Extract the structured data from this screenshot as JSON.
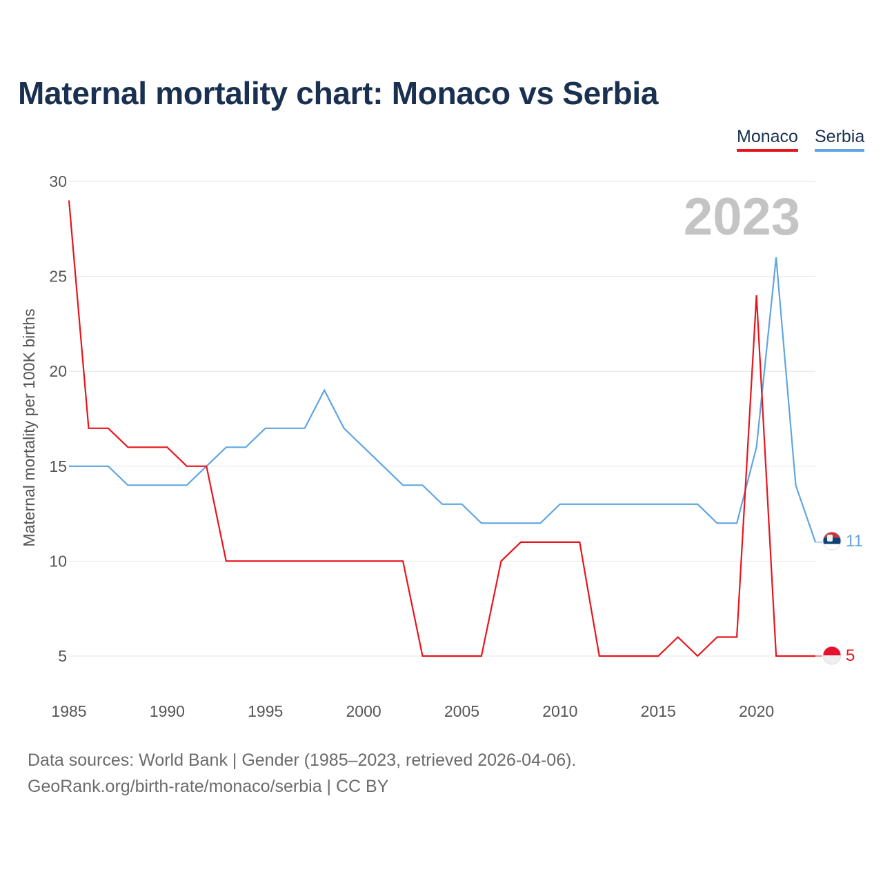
{
  "title": "Maternal mortality chart: Monaco vs Serbia",
  "legend": {
    "monaco": "Monaco",
    "serbia": "Serbia"
  },
  "year_label": "2023",
  "footer": {
    "source": "Data sources: World Bank | Gender (1985–2023, retrieved 2026-04-06).",
    "credit": "GeoRank.org/birth-rate/monaco/serbia | CC BY"
  },
  "colors": {
    "monaco": "#e8141c",
    "serbia": "#5fa5e3",
    "grid": "#e6e6e6"
  },
  "chart_data": {
    "type": "line",
    "title": "Maternal mortality chart: Monaco vs Serbia",
    "xlabel": "",
    "ylabel": "Maternal mortality per 100K births",
    "xlim": [
      1985,
      2023
    ],
    "ylim": [
      5,
      30
    ],
    "x_ticks": [
      1985,
      1990,
      1995,
      2000,
      2005,
      2010,
      2015,
      2020
    ],
    "y_ticks": [
      5,
      10,
      15,
      20,
      25,
      30
    ],
    "x": [
      1985,
      1986,
      1987,
      1988,
      1989,
      1990,
      1991,
      1992,
      1993,
      1994,
      1995,
      1996,
      1997,
      1998,
      1999,
      2000,
      2001,
      2002,
      2003,
      2004,
      2005,
      2006,
      2007,
      2008,
      2009,
      2010,
      2011,
      2012,
      2013,
      2014,
      2015,
      2016,
      2017,
      2018,
      2019,
      2020,
      2021,
      2022,
      2023
    ],
    "series": [
      {
        "name": "Monaco",
        "end_value": "5",
        "values": [
          29,
          17,
          17,
          16,
          16,
          16,
          15,
          15,
          10,
          10,
          10,
          10,
          10,
          10,
          10,
          10,
          10,
          10,
          5,
          5,
          5,
          5,
          10,
          11,
          11,
          11,
          11,
          5,
          5,
          5,
          5,
          6,
          5,
          6,
          6,
          24,
          5,
          5,
          5
        ]
      },
      {
        "name": "Serbia",
        "end_value": "11",
        "values": [
          15,
          15,
          15,
          14,
          14,
          14,
          14,
          15,
          16,
          16,
          17,
          17,
          17,
          19,
          17,
          16,
          15,
          14,
          14,
          13,
          13,
          12,
          12,
          12,
          12,
          13,
          13,
          13,
          13,
          13,
          13,
          13,
          13,
          12,
          12,
          16,
          26,
          14,
          11
        ]
      }
    ]
  }
}
